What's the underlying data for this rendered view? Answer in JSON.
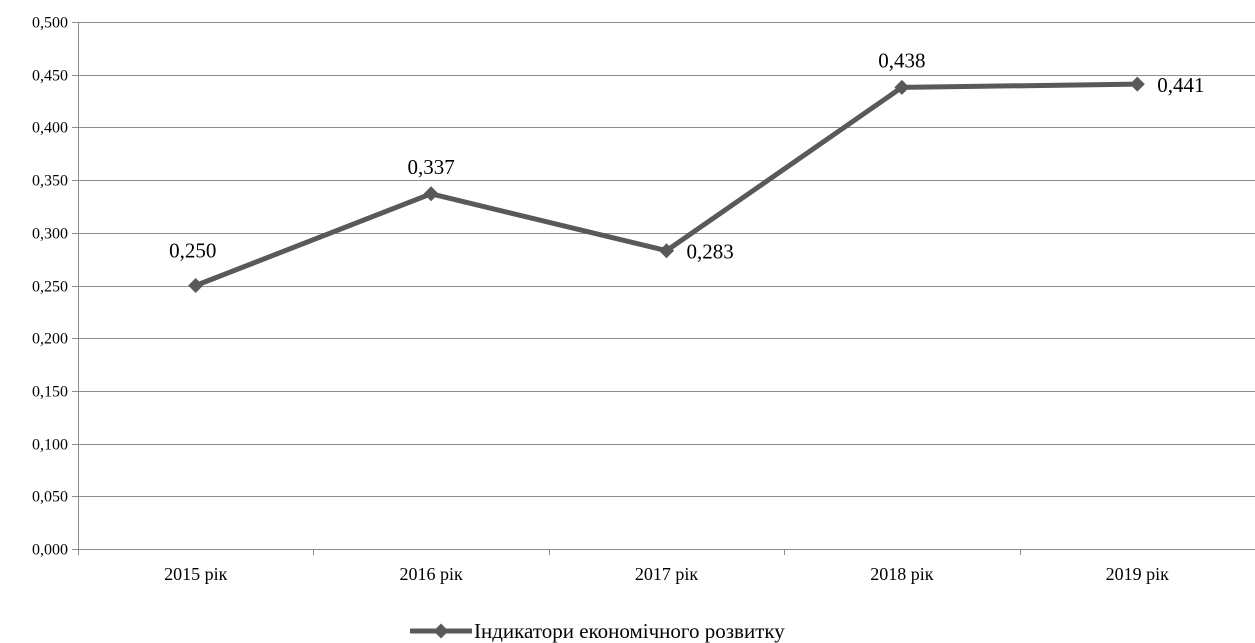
{
  "chart_data": {
    "type": "line",
    "categories": [
      "2015 рік",
      "2016 рік",
      "2017 рік",
      "2018 рік",
      "2019 рік"
    ],
    "series": [
      {
        "name": "Індикатори економічного розвитку",
        "values": [
          0.25,
          0.337,
          0.283,
          0.438,
          0.441
        ],
        "labels": [
          "0,250",
          "0,337",
          "0,283",
          "0,438",
          "0,441"
        ],
        "label_positions": [
          "above-left",
          "above",
          "right",
          "above",
          "right"
        ],
        "color": "#595959",
        "marker": "diamond"
      }
    ],
    "ylim": [
      0,
      0.5
    ],
    "yticks": [
      0,
      0.05,
      0.1,
      0.15,
      0.2,
      0.25,
      0.3,
      0.35,
      0.4,
      0.45,
      0.5
    ],
    "ytick_labels": [
      "0,000",
      "0,050",
      "0,100",
      "0,150",
      "0,200",
      "0,250",
      "0,300",
      "0,350",
      "0,400",
      "0,450",
      "0,500"
    ],
    "grid": true,
    "legend": "bottom",
    "colors": {
      "gridline": "#8c8c8c",
      "axis": "#8c8c8c",
      "series": "#595959"
    }
  }
}
